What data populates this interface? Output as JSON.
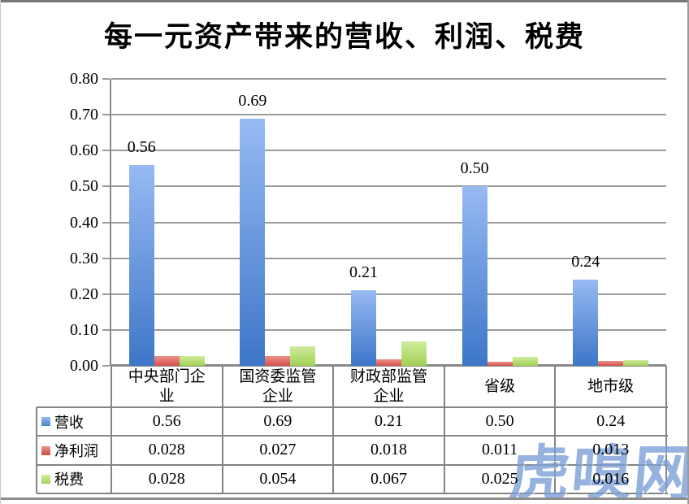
{
  "chart_data": {
    "type": "bar",
    "title": "每一元资产带来的营收、利润、税费",
    "categories": [
      "中央部门企业",
      "国资委监管企业",
      "财政部监管企业",
      "省级",
      "地市级"
    ],
    "series": [
      {
        "name": "营收",
        "values": [
          0.56,
          0.69,
          0.21,
          0.5,
          0.24
        ],
        "labels": [
          "0.56",
          "0.69",
          "0.21",
          "0.50",
          "0.24"
        ],
        "show_point_labels": true,
        "color_top": "#97baf3",
        "color_bottom": "#3d76c8",
        "legend_color": "#4a86cc"
      },
      {
        "name": "净利润",
        "values": [
          0.028,
          0.027,
          0.018,
          0.011,
          0.013
        ],
        "labels": [
          "0.028",
          "0.027",
          "0.018",
          "0.011",
          "0.013"
        ],
        "show_point_labels": false,
        "color_top": "#ef908a",
        "color_bottom": "#d3514d",
        "legend_color": "#cc4b47"
      },
      {
        "name": "税费",
        "values": [
          0.028,
          0.054,
          0.067,
          0.025,
          0.016
        ],
        "labels": [
          "0.028",
          "0.054",
          "0.067",
          "0.025",
          "0.016"
        ],
        "show_point_labels": false,
        "color_top": "#cfec9d",
        "color_bottom": "#a2d055",
        "legend_color": "#a2d158"
      }
    ],
    "ylim": [
      0,
      0.8
    ],
    "ytick_step": 0.1,
    "ytick_labels": [
      "0.00",
      "0.10",
      "0.20",
      "0.30",
      "0.40",
      "0.50",
      "0.60",
      "0.70",
      "0.80"
    ],
    "grid": true,
    "legend_position": "data-table-left",
    "data_table": true,
    "gridline_color": "#9b9b9b",
    "table_border_color": "#848484"
  },
  "watermark": {
    "text": "虎嗅网",
    "color": "#7d9fd6"
  }
}
